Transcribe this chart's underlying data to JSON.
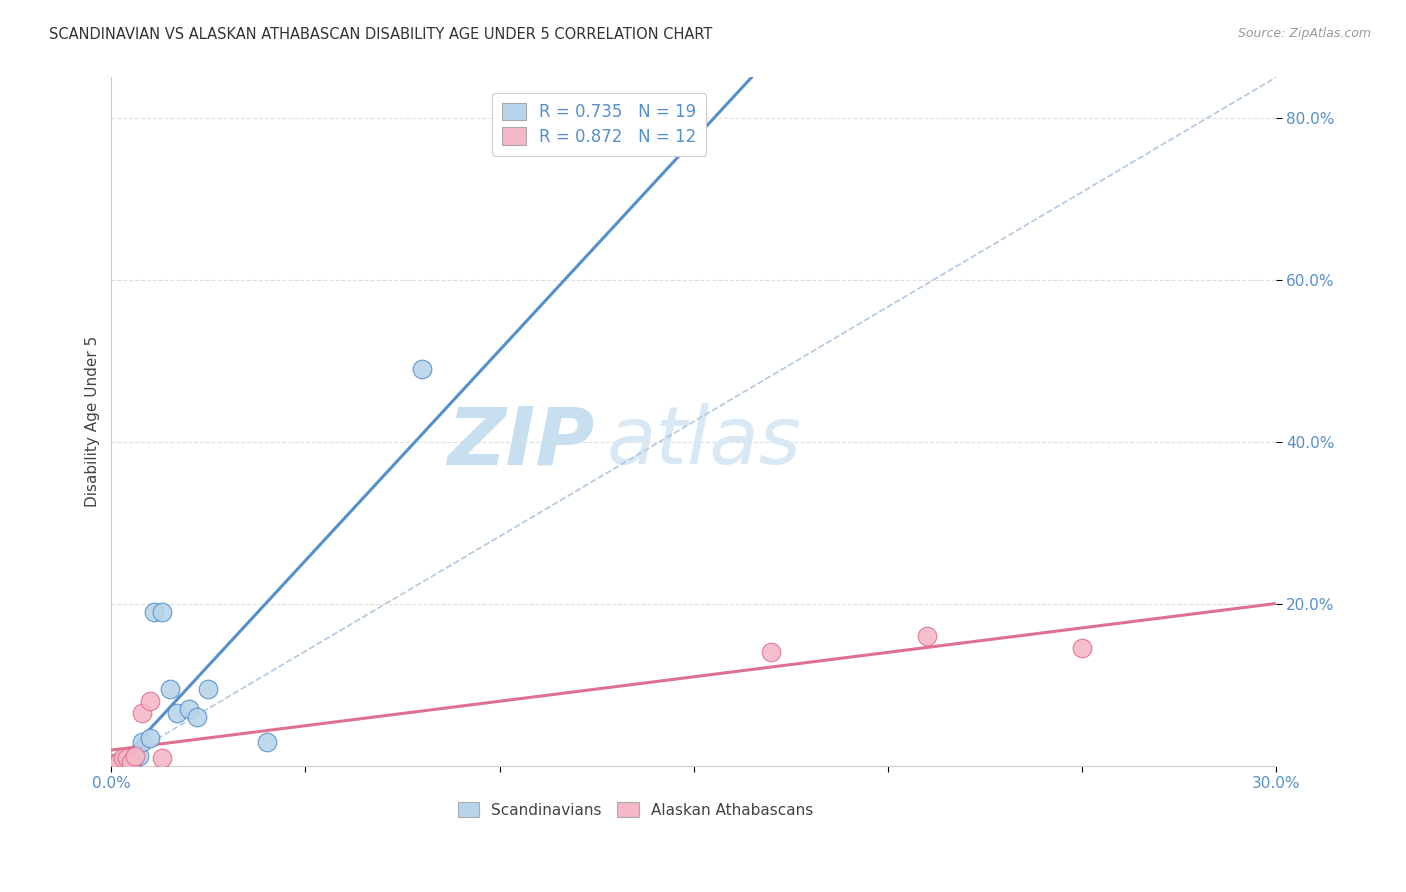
{
  "title": "SCANDINAVIAN VS ALASKAN ATHABASCAN DISABILITY AGE UNDER 5 CORRELATION CHART",
  "source": "Source: ZipAtlas.com",
  "ylabel": "Disability Age Under 5",
  "xlim": [
    0.0,
    0.3
  ],
  "ylim": [
    0.0,
    0.85
  ],
  "background_color": "#ffffff",
  "scandinavian_color": "#b8d4ea",
  "alaskan_color": "#f4b8c8",
  "scandinavian_line_color": "#5590cc",
  "alaskan_line_color": "#e07090",
  "diagonal_color": "#b0c8e0",
  "tick_color": "#5590cc",
  "grid_color": "#dddddd",
  "R_scandinavian": 0.735,
  "N_scandinavian": 19,
  "R_alaskan": 0.872,
  "N_alaskan": 12,
  "scandinavian_x": [
    0.001,
    0.002,
    0.003,
    0.003,
    0.004,
    0.005,
    0.006,
    0.007,
    0.008,
    0.01,
    0.011,
    0.013,
    0.015,
    0.017,
    0.02,
    0.022,
    0.025,
    0.04,
    0.08
  ],
  "scandinavian_y": [
    0.003,
    0.004,
    0.004,
    0.006,
    0.006,
    0.008,
    0.01,
    0.012,
    0.03,
    0.035,
    0.19,
    0.19,
    0.095,
    0.065,
    0.07,
    0.06,
    0.095,
    0.03,
    0.49
  ],
  "alaskan_x": [
    0.001,
    0.002,
    0.003,
    0.004,
    0.005,
    0.006,
    0.008,
    0.01,
    0.013,
    0.17,
    0.21,
    0.25
  ],
  "alaskan_y": [
    0.003,
    0.005,
    0.01,
    0.01,
    0.005,
    0.012,
    0.065,
    0.08,
    0.01,
    0.14,
    0.16,
    0.145
  ],
  "watermark_zip_color": "#c8dff0",
  "watermark_atlas_color": "#d8e8f4"
}
